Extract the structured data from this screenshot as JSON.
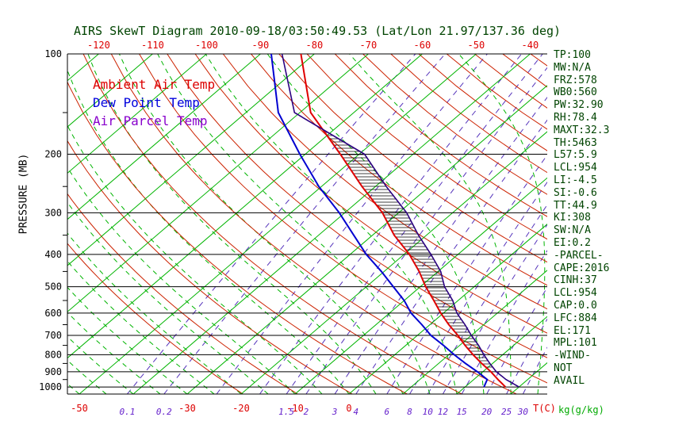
{
  "title": "AIRS SkewT Diagram 2010-09-18/03:50:49.53 (Lat/Lon 21.97/137.36 deg)",
  "legend": {
    "items": [
      {
        "label": "Ambient Air Temp",
        "color": "#dd0000"
      },
      {
        "label": "Dew Point Temp",
        "color": "#0000dd"
      },
      {
        "label": "Air Parcel Temp",
        "color": "#8800cc"
      }
    ]
  },
  "axes": {
    "pressure_axis_label": "PRESSURE (MB)",
    "pressure_ticks": [
      100,
      200,
      300,
      400,
      500,
      600,
      700,
      800,
      900,
      1000
    ],
    "top_temp_ticks": [
      -120,
      -110,
      -100,
      -90,
      -80,
      -70,
      -60,
      -50,
      -40
    ],
    "bottom_temp_ticks": [
      -50,
      -30,
      -20,
      -10,
      0
    ],
    "temp_axis_label": "T(C)",
    "mixing_ratio_labels": [
      0.1,
      0.2,
      1.5,
      2,
      3,
      4,
      6,
      8,
      10,
      12,
      15,
      20,
      25,
      30
    ],
    "mixing_axis_label": "kg(g/kg)"
  },
  "stats_panel": [
    "TP:100",
    "MW:N/A",
    "FRZ:578",
    "WB0:560",
    "PW:32.90",
    "RH:78.4",
    "MAXT:32.3",
    "TH:5463",
    "L57:5.9",
    "LCL:954",
    "LI:-4.5",
    "SI:-0.6",
    "TT:44.9",
    "KI:308",
    "SW:N/A",
    "EI:0.2",
    "-PARCEL-",
    "CAPE:2016",
    "CINH:37",
    "LCL:954",
    "CAP:0.0",
    "LFC:884",
    "EL:171",
    "MPL:101",
    "-WIND-",
    "NOT",
    "AVAIL"
  ],
  "colors": {
    "background": "#ffffff",
    "isotherm": "#00b400",
    "moist_adiabat": "#00b400",
    "dry_adiabat": "#cc2200",
    "mixing_ratio": "#5533bb",
    "pressure_line": "#000000",
    "temp_label": "#dd0000",
    "mixing_label": "#6622cc",
    "mixing_unit_label": "#00aa00",
    "axis_text": "#000000",
    "title_text": "#004400",
    "stats_text": "#004400",
    "hatch": "#000000"
  },
  "chart_data": {
    "type": "line",
    "title": "AIRS SkewT Diagram 2010-09-18/03:50:49.53 (Lat/Lon 21.97/137.36 deg)",
    "xlabel": "T(C)",
    "ylabel": "PRESSURE (MB)",
    "x_range_c": [
      -120,
      40
    ],
    "pressure_range_mb": [
      100,
      1050
    ],
    "log_pressure_axis": true,
    "pressure_mb": [
      100,
      150,
      200,
      250,
      300,
      350,
      400,
      450,
      500,
      550,
      600,
      650,
      700,
      750,
      800,
      850,
      900,
      950,
      1000
    ],
    "series": [
      {
        "name": "Ambient Air Temp",
        "color": "#e00000",
        "temps_c": [
          -82.5,
          -68,
          -53.5,
          -42.5,
          -33,
          -26,
          -19,
          -13.5,
          -9,
          -4.5,
          -0.5,
          3.5,
          7.5,
          11,
          14.5,
          18,
          21.5,
          24.5,
          27.5
        ]
      },
      {
        "name": "Dew Point Temp",
        "color": "#0000d0",
        "temps_c": [
          -88,
          -74,
          -61,
          -50.5,
          -41,
          -33.5,
          -27,
          -20.5,
          -15,
          -10,
          -6,
          -1.5,
          2.5,
          7,
          11,
          15,
          19,
          22.5,
          23.5
        ]
      },
      {
        "name": "Air Parcel Temp",
        "color": "#2b0080",
        "temps_c": [
          -86,
          -71,
          -49,
          -38,
          -28.5,
          -21.5,
          -15,
          -9.5,
          -5.5,
          -1,
          2.5,
          6.5,
          10,
          13.5,
          16.5,
          19.5,
          22.5,
          26,
          30
        ]
      }
    ],
    "background": {
      "isotherms_c": {
        "min": -120,
        "max": 40,
        "step": 10
      },
      "dry_adiabats_theta_k": {
        "min": 250,
        "max": 460,
        "step": 10
      },
      "moist_adiabats_start_c": {
        "min": -55,
        "max": 40,
        "step": 5
      },
      "mixing_ratio_lines_gkg": [
        0.1,
        0.2,
        0.5,
        1,
        1.5,
        2,
        3,
        4,
        6,
        8,
        10,
        12,
        15,
        20,
        25,
        30
      ]
    },
    "cape_hatch_pressure_range_mb": [
      172,
      884
    ]
  }
}
